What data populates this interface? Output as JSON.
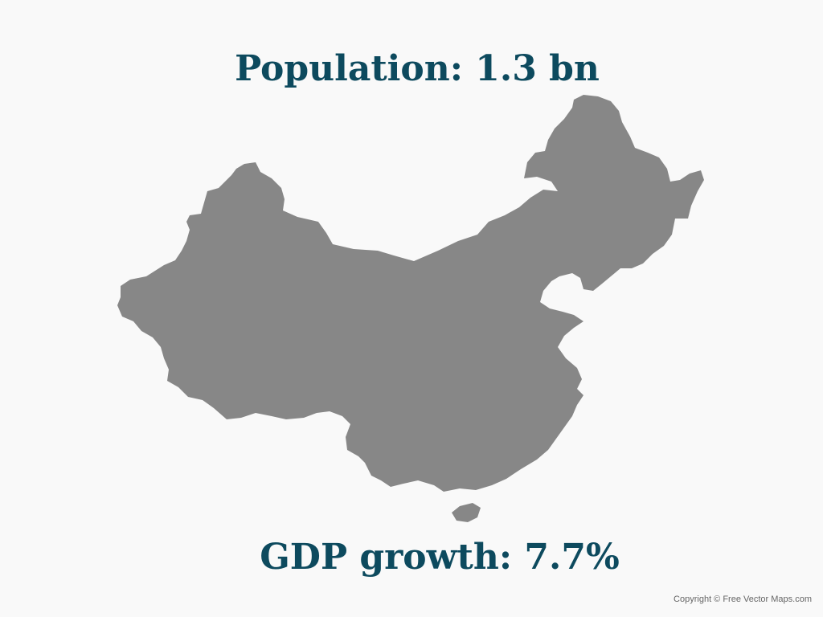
{
  "headline_top": "Population: 1.3 bn",
  "headline_bottom": "GDP growth: 7.7%",
  "copyright": "Copyright © Free Vector Maps.com",
  "colors": {
    "background": "#f9f9f9",
    "text": "#0d4a5e",
    "landmass": "#878787",
    "copyright": "#666666"
  },
  "map": {
    "country_shape": "china-silhouette",
    "island_shape": "hainan-island"
  }
}
